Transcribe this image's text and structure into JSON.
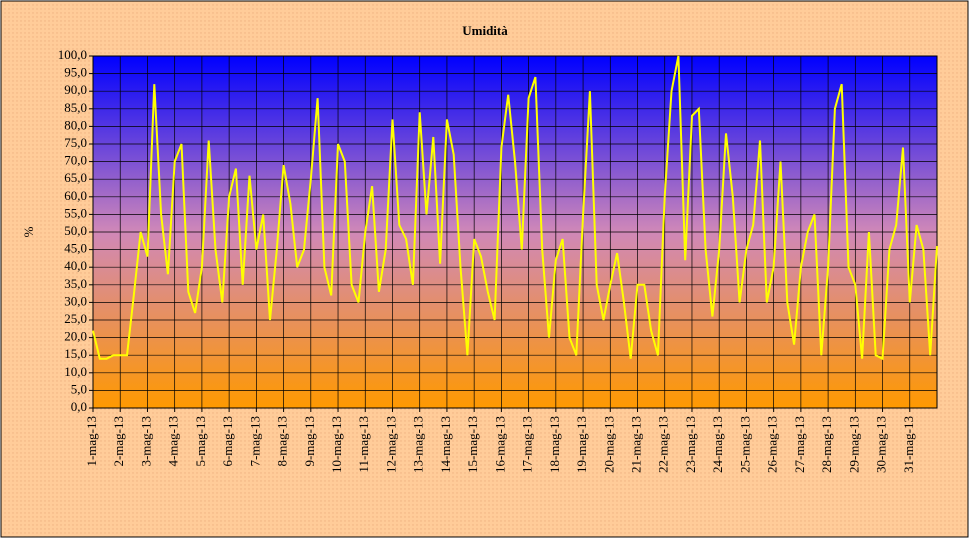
{
  "chart_data": {
    "type": "line",
    "title": "Umidità",
    "y_label": "%",
    "x": [
      1,
      1.25,
      1.5,
      1.75,
      2,
      2.25,
      2.5,
      2.75,
      3,
      3.25,
      3.5,
      3.75,
      4,
      4.25,
      4.5,
      4.75,
      5,
      5.25,
      5.5,
      5.75,
      6,
      6.25,
      6.5,
      6.75,
      7,
      7.25,
      7.5,
      7.75,
      8,
      8.25,
      8.5,
      8.75,
      9,
      9.25,
      9.5,
      9.75,
      10,
      10.25,
      10.5,
      10.75,
      11,
      11.25,
      11.5,
      11.75,
      12,
      12.25,
      12.5,
      12.75,
      13,
      13.25,
      13.5,
      13.75,
      14,
      14.25,
      14.5,
      14.75,
      15,
      15.25,
      15.5,
      15.75,
      16,
      16.25,
      16.5,
      16.75,
      17,
      17.25,
      17.5,
      17.75,
      18,
      18.25,
      18.5,
      18.75,
      19,
      19.25,
      19.5,
      19.75,
      20,
      20.25,
      20.5,
      20.75,
      21,
      21.25,
      21.5,
      21.75,
      22,
      22.25,
      22.5,
      22.75,
      23,
      23.25,
      23.5,
      23.75,
      24,
      24.25,
      24.5,
      24.75,
      25,
      25.25,
      25.5,
      25.75,
      26,
      26.25,
      26.5,
      26.75,
      27,
      27.25,
      27.5,
      27.75,
      28,
      28.25,
      28.5,
      28.75,
      29,
      29.25,
      29.5,
      29.75,
      30,
      30.25,
      30.5,
      30.75,
      31,
      31.25,
      31.5,
      31.75,
      32
    ],
    "series": [
      {
        "name": "Umidità",
        "color": "#ffff00",
        "values": [
          22,
          14,
          14,
          15,
          15,
          15,
          32,
          50,
          43,
          92,
          55,
          38,
          70,
          75,
          33,
          27,
          40,
          76,
          45,
          30,
          60,
          68,
          35,
          66,
          45,
          55,
          25,
          45,
          69,
          58,
          40,
          45,
          65,
          88,
          40,
          32,
          75,
          70,
          35,
          30,
          50,
          63,
          33,
          45,
          82,
          52,
          48,
          35,
          84,
          55,
          77,
          41,
          82,
          72,
          40,
          15,
          48,
          43,
          33,
          25,
          74,
          89,
          70,
          45,
          88,
          94,
          45,
          20,
          42,
          48,
          20,
          15,
          55,
          90,
          35,
          25,
          35,
          44,
          30,
          14,
          35,
          35,
          22,
          15,
          60,
          90,
          100,
          42,
          83,
          85,
          45,
          26,
          45,
          78,
          60,
          30,
          45,
          52,
          76,
          30,
          40,
          70,
          30,
          18,
          40,
          50,
          55,
          15,
          40,
          85,
          92,
          40,
          35,
          14,
          50,
          15,
          14,
          45,
          52,
          74,
          30,
          52,
          45,
          15,
          46
        ]
      }
    ],
    "xlim": [
      1,
      32
    ],
    "xticks": [
      {
        "value": 1,
        "label": "1-mag-13"
      },
      {
        "value": 2,
        "label": "2-mag-13"
      },
      {
        "value": 3,
        "label": "3-mag-13"
      },
      {
        "value": 4,
        "label": "4-mag-13"
      },
      {
        "value": 5,
        "label": "5-mag-13"
      },
      {
        "value": 6,
        "label": "6-mag-13"
      },
      {
        "value": 7,
        "label": "7-mag-13"
      },
      {
        "value": 8,
        "label": "8-mag-13"
      },
      {
        "value": 9,
        "label": "9-mag-13"
      },
      {
        "value": 10,
        "label": "10-mag-13"
      },
      {
        "value": 11,
        "label": "11-mag-13"
      },
      {
        "value": 12,
        "label": "12-mag-13"
      },
      {
        "value": 13,
        "label": "13-mag-13"
      },
      {
        "value": 14,
        "label": "14-mag-13"
      },
      {
        "value": 15,
        "label": "15-mag-13"
      },
      {
        "value": 16,
        "label": "16-mag-13"
      },
      {
        "value": 17,
        "label": "17-mag-13"
      },
      {
        "value": 18,
        "label": "18-mag-13"
      },
      {
        "value": 19,
        "label": "19-mag-13"
      },
      {
        "value": 20,
        "label": "20-mag-13"
      },
      {
        "value": 21,
        "label": "21-mag-13"
      },
      {
        "value": 22,
        "label": "22-mag-13"
      },
      {
        "value": 23,
        "label": "23-mag-13"
      },
      {
        "value": 24,
        "label": "24-mag-13"
      },
      {
        "value": 25,
        "label": "25-mag-13"
      },
      {
        "value": 26,
        "label": "26-mag-13"
      },
      {
        "value": 27,
        "label": "27-mag-13"
      },
      {
        "value": 28,
        "label": "28-mag-13"
      },
      {
        "value": 29,
        "label": "29-mag-13"
      },
      {
        "value": 30,
        "label": "30-mag-13"
      },
      {
        "value": 31,
        "label": "31-mag-13"
      }
    ],
    "ylim": [
      0,
      100
    ],
    "yticks": [
      {
        "value": 0,
        "label": "0,0"
      },
      {
        "value": 5,
        "label": "5,0"
      },
      {
        "value": 10,
        "label": "10,0"
      },
      {
        "value": 15,
        "label": "15,0"
      },
      {
        "value": 20,
        "label": "20,0"
      },
      {
        "value": 25,
        "label": "25,0"
      },
      {
        "value": 30,
        "label": "30,0"
      },
      {
        "value": 35,
        "label": "35,0"
      },
      {
        "value": 40,
        "label": "40,0"
      },
      {
        "value": 45,
        "label": "45,0"
      },
      {
        "value": 50,
        "label": "50,0"
      },
      {
        "value": 55,
        "label": "55,0"
      },
      {
        "value": 60,
        "label": "60,0"
      },
      {
        "value": 65,
        "label": "65,0"
      },
      {
        "value": 70,
        "label": "70,0"
      },
      {
        "value": 75,
        "label": "75,0"
      },
      {
        "value": 80,
        "label": "80,0"
      },
      {
        "value": 85,
        "label": "85,0"
      },
      {
        "value": 90,
        "label": "90,0"
      },
      {
        "value": 95,
        "label": "95,0"
      },
      {
        "value": 100,
        "label": "100,0"
      }
    ],
    "grid": true
  }
}
